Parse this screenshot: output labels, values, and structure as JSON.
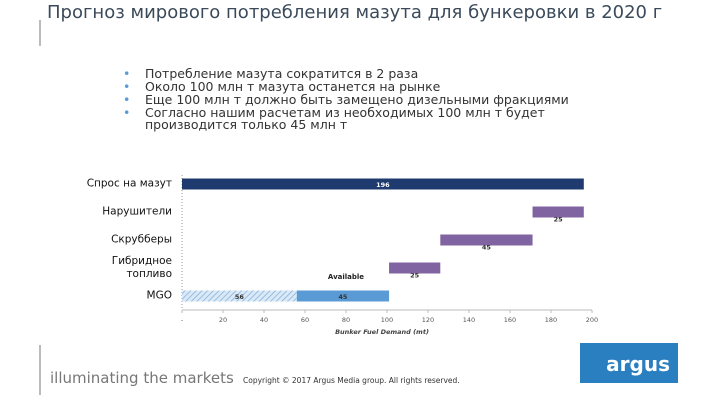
{
  "header": {
    "title": "Прогноз мирового потребления мазута для бункеровки в 2020 г"
  },
  "bullets": [
    "Потребление мазута сократится в 2 раза",
    "Около 100 млн т мазута останется на рынке",
    "Еще 100 млн т должно быть замещено дизельными фракциями",
    "Согласно нашим расчетам из необходимых 100 млн т будет производится только 45 млн т"
  ],
  "chart_data": {
    "type": "waterfall",
    "categories": [
      "Спрос на мазут",
      "Нарушители",
      "Скрубберы",
      "Гибридное топливо",
      "MGO"
    ],
    "bars": [
      {
        "values": [
          196
        ],
        "colors": [
          "#1f3a6e"
        ]
      },
      {
        "values": [
          25
        ],
        "colors": [
          "#8064a2"
        ]
      },
      {
        "values": [
          45
        ],
        "colors": [
          "#8064a2"
        ]
      },
      {
        "values": [
          25
        ],
        "colors": [
          "#8064a2"
        ]
      },
      {
        "values": [
          56,
          45
        ],
        "colors": [
          "hatch",
          "#5b9bd5"
        ]
      }
    ],
    "annotation": "Available",
    "xlabel": "Bunker Fuel Demand (mt)",
    "xlim": [
      0,
      200
    ],
    "xticks": [
      {
        "value": 0,
        "label": "-"
      },
      20,
      40,
      60,
      80,
      100,
      120,
      140,
      160,
      180,
      200
    ]
  },
  "footer": {
    "tagline": "illuminating the markets",
    "copyright": "Copyright © 2017 Argus Media group. All rights reserved.",
    "logo": "argus"
  }
}
